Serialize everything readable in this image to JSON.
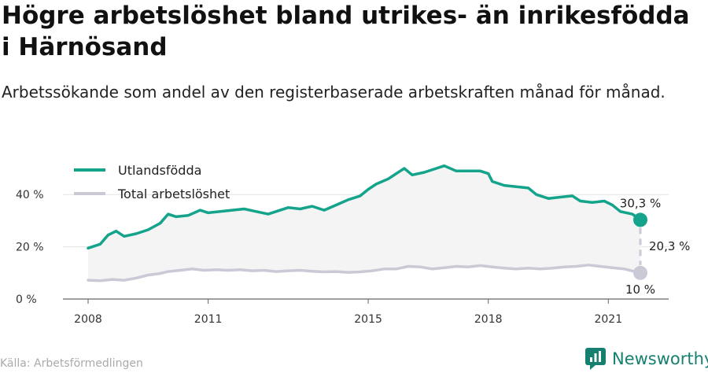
{
  "header": {
    "title": "Högre arbetslöshet bland utrikes- än inrikesfödda i Härnösand",
    "subtitle": "Arbetssökande som andel av den registerbaserade arbetskraften månad för månad."
  },
  "footer": {
    "source": "Källa: Arbetsförmedlingen",
    "brand": "Newsworthy"
  },
  "colors": {
    "foreign_born": "#14a38b",
    "total": "#c9cad6",
    "area": "#f4f4f5",
    "grid": "#e3e3e3",
    "brand": "#15806f"
  },
  "chart_data": {
    "type": "line",
    "title": "Högre arbetslöshet bland utrikes- än inrikesfödda i Härnösand",
    "subtitle": "Arbetssökande som andel av den registerbaserade arbetskraften månad för månad.",
    "ylim": [
      0,
      50
    ],
    "y_ticks": [
      {
        "value": 0,
        "label": "0 %"
      },
      {
        "value": 20,
        "label": "20 %"
      },
      {
        "value": 40,
        "label": "40 %"
      }
    ],
    "x_ticks": [
      {
        "value": 2008,
        "label": "2008"
      },
      {
        "value": 2011,
        "label": "2011"
      },
      {
        "value": 2015,
        "label": "2015"
      },
      {
        "value": 2018,
        "label": "2018"
      },
      {
        "value": 2021,
        "label": "2021"
      }
    ],
    "grid": true,
    "legend_position": "top-left",
    "series": [
      {
        "name": "Utlandsfödda",
        "color": "#14a38b",
        "points": [
          [
            2008.0,
            19.5
          ],
          [
            2008.3,
            21.0
          ],
          [
            2008.5,
            24.5
          ],
          [
            2008.7,
            26.0
          ],
          [
            2008.9,
            24.0
          ],
          [
            2009.2,
            25.0
          ],
          [
            2009.5,
            26.5
          ],
          [
            2009.8,
            29.0
          ],
          [
            2010.0,
            32.5
          ],
          [
            2010.2,
            31.5
          ],
          [
            2010.5,
            32.0
          ],
          [
            2010.8,
            34.0
          ],
          [
            2011.0,
            33.0
          ],
          [
            2011.3,
            33.5
          ],
          [
            2011.6,
            34.0
          ],
          [
            2011.9,
            34.5
          ],
          [
            2012.2,
            33.5
          ],
          [
            2012.5,
            32.5
          ],
          [
            2012.8,
            34.0
          ],
          [
            2013.0,
            35.0
          ],
          [
            2013.3,
            34.5
          ],
          [
            2013.6,
            35.5
          ],
          [
            2013.9,
            34.0
          ],
          [
            2014.2,
            36.0
          ],
          [
            2014.5,
            38.0
          ],
          [
            2014.8,
            39.5
          ],
          [
            2015.0,
            42.0
          ],
          [
            2015.2,
            44.0
          ],
          [
            2015.5,
            46.0
          ],
          [
            2015.7,
            48.0
          ],
          [
            2015.9,
            50.0
          ],
          [
            2016.1,
            47.5
          ],
          [
            2016.4,
            48.5
          ],
          [
            2016.7,
            50.0
          ],
          [
            2016.9,
            51.0
          ],
          [
            2017.2,
            49.0
          ],
          [
            2017.5,
            49.0
          ],
          [
            2017.8,
            49.0
          ],
          [
            2018.0,
            48.0
          ],
          [
            2018.1,
            45.0
          ],
          [
            2018.4,
            43.5
          ],
          [
            2018.7,
            43.0
          ],
          [
            2019.0,
            42.5
          ],
          [
            2019.2,
            40.0
          ],
          [
            2019.5,
            38.5
          ],
          [
            2019.8,
            39.0
          ],
          [
            2020.1,
            39.5
          ],
          [
            2020.3,
            37.5
          ],
          [
            2020.6,
            37.0
          ],
          [
            2020.9,
            37.5
          ],
          [
            2021.1,
            36.0
          ],
          [
            2021.3,
            33.5
          ],
          [
            2021.6,
            32.5
          ],
          [
            2021.8,
            30.3
          ]
        ],
        "end_label": "30,3 %"
      },
      {
        "name": "Total arbetslöshet",
        "color": "#c9cad6",
        "points": [
          [
            2008.0,
            7.2
          ],
          [
            2008.3,
            7.0
          ],
          [
            2008.6,
            7.5
          ],
          [
            2008.9,
            7.2
          ],
          [
            2009.2,
            8.0
          ],
          [
            2009.5,
            9.2
          ],
          [
            2009.8,
            9.8
          ],
          [
            2010.0,
            10.5
          ],
          [
            2010.3,
            11.0
          ],
          [
            2010.6,
            11.5
          ],
          [
            2010.9,
            11.0
          ],
          [
            2011.2,
            11.2
          ],
          [
            2011.5,
            11.0
          ],
          [
            2011.8,
            11.2
          ],
          [
            2012.1,
            10.8
          ],
          [
            2012.4,
            11.0
          ],
          [
            2012.7,
            10.5
          ],
          [
            2013.0,
            10.8
          ],
          [
            2013.3,
            11.0
          ],
          [
            2013.6,
            10.6
          ],
          [
            2013.9,
            10.4
          ],
          [
            2014.2,
            10.5
          ],
          [
            2014.5,
            10.2
          ],
          [
            2014.8,
            10.4
          ],
          [
            2015.1,
            10.8
          ],
          [
            2015.4,
            11.5
          ],
          [
            2015.7,
            11.5
          ],
          [
            2016.0,
            12.5
          ],
          [
            2016.3,
            12.3
          ],
          [
            2016.6,
            11.5
          ],
          [
            2016.9,
            12.0
          ],
          [
            2017.2,
            12.5
          ],
          [
            2017.5,
            12.3
          ],
          [
            2017.8,
            12.8
          ],
          [
            2018.1,
            12.3
          ],
          [
            2018.4,
            11.8
          ],
          [
            2018.7,
            11.5
          ],
          [
            2019.0,
            11.8
          ],
          [
            2019.3,
            11.5
          ],
          [
            2019.6,
            11.8
          ],
          [
            2019.9,
            12.3
          ],
          [
            2020.2,
            12.5
          ],
          [
            2020.5,
            13.0
          ],
          [
            2020.8,
            12.5
          ],
          [
            2021.1,
            12.0
          ],
          [
            2021.4,
            11.5
          ],
          [
            2021.8,
            10.0
          ]
        ],
        "end_label": "10 %"
      }
    ],
    "annotations": {
      "difference_label": "20,3 %"
    }
  }
}
